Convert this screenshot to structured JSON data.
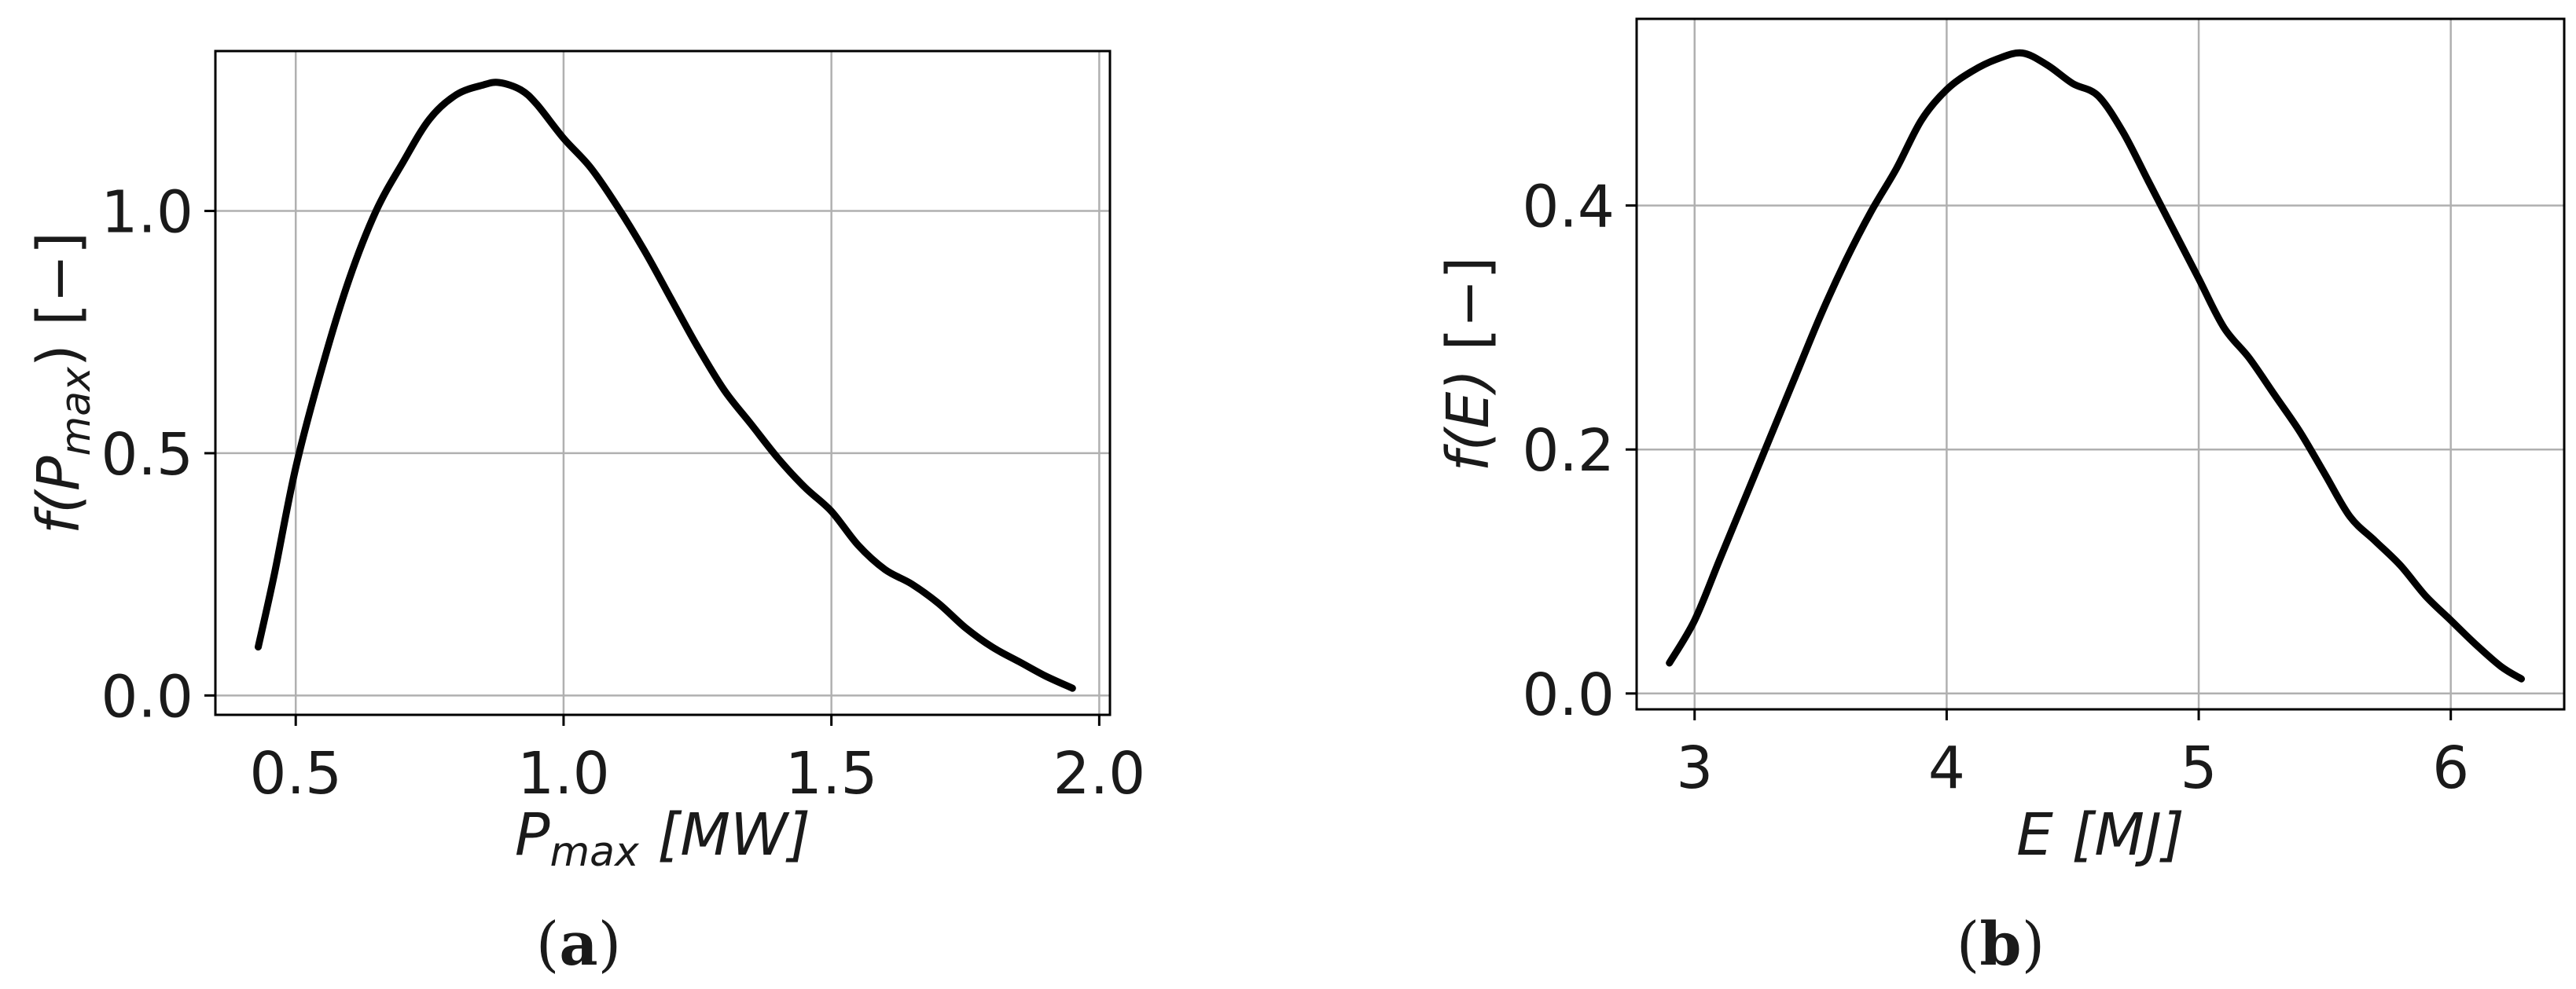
{
  "chart_data": [
    {
      "panel": "(a)",
      "caption_letter": "a",
      "type": "line",
      "xlabel": {
        "main": "P",
        "sub": "max",
        "unit": "[MW]"
      },
      "ylabel": {
        "main": "f(P",
        "sub": "max",
        "tail": ") [−]"
      },
      "xlim": [
        0.35,
        2.02
      ],
      "ylim": [
        -0.04,
        1.33
      ],
      "xticks": [
        {
          "value": 0.5,
          "label": "0.5"
        },
        {
          "value": 1.0,
          "label": "1.0"
        },
        {
          "value": 1.5,
          "label": "1.5"
        },
        {
          "value": 2.0,
          "label": "2.0"
        }
      ],
      "yticks": [
        {
          "value": 0.0,
          "label": "0.0"
        },
        {
          "value": 0.5,
          "label": "0.5"
        },
        {
          "value": 1.0,
          "label": "1.0"
        }
      ],
      "grid": true,
      "series": [
        {
          "color": "#000000",
          "x": [
            0.43,
            0.46,
            0.5,
            0.55,
            0.6,
            0.65,
            0.7,
            0.75,
            0.8,
            0.85,
            0.88,
            0.92,
            0.95,
            1.0,
            1.05,
            1.1,
            1.15,
            1.2,
            1.25,
            1.3,
            1.35,
            1.4,
            1.45,
            1.5,
            1.55,
            1.6,
            1.65,
            1.7,
            1.75,
            1.8,
            1.85,
            1.9,
            1.95
          ],
          "y": [
            0.1,
            0.25,
            0.47,
            0.68,
            0.86,
            1.0,
            1.1,
            1.19,
            1.24,
            1.26,
            1.265,
            1.25,
            1.22,
            1.15,
            1.09,
            1.01,
            0.92,
            0.82,
            0.72,
            0.63,
            0.56,
            0.49,
            0.43,
            0.38,
            0.31,
            0.26,
            0.23,
            0.19,
            0.14,
            0.1,
            0.07,
            0.04,
            0.015
          ]
        }
      ]
    },
    {
      "panel": "(b)",
      "caption_letter": "b",
      "type": "line",
      "xlabel": {
        "main": "E",
        "sub": "",
        "unit": "[MJ]"
      },
      "ylabel": {
        "main": "f(E)",
        "sub": "",
        "tail": " [−]"
      },
      "xlim": [
        2.77,
        6.45
      ],
      "ylim": [
        -0.013,
        0.553
      ],
      "xticks": [
        {
          "value": 3,
          "label": "3"
        },
        {
          "value": 4,
          "label": "4"
        },
        {
          "value": 5,
          "label": "5"
        },
        {
          "value": 6,
          "label": "6"
        }
      ],
      "yticks": [
        {
          "value": 0.0,
          "label": "0.0"
        },
        {
          "value": 0.2,
          "label": "0.2"
        },
        {
          "value": 0.4,
          "label": "0.4"
        }
      ],
      "grid": true,
      "series": [
        {
          "color": "#000000",
          "x": [
            2.9,
            3.0,
            3.1,
            3.2,
            3.3,
            3.4,
            3.5,
            3.6,
            3.7,
            3.8,
            3.9,
            4.0,
            4.1,
            4.2,
            4.3,
            4.4,
            4.5,
            4.6,
            4.7,
            4.8,
            4.9,
            5.0,
            5.1,
            5.2,
            5.3,
            5.4,
            5.5,
            5.6,
            5.7,
            5.8,
            5.9,
            6.0,
            6.1,
            6.2,
            6.28
          ],
          "y": [
            0.025,
            0.06,
            0.11,
            0.16,
            0.21,
            0.26,
            0.31,
            0.355,
            0.395,
            0.43,
            0.47,
            0.495,
            0.51,
            0.52,
            0.525,
            0.515,
            0.5,
            0.49,
            0.46,
            0.42,
            0.38,
            0.34,
            0.3,
            0.275,
            0.245,
            0.215,
            0.18,
            0.145,
            0.125,
            0.105,
            0.08,
            0.06,
            0.04,
            0.022,
            0.012
          ]
        }
      ]
    }
  ]
}
